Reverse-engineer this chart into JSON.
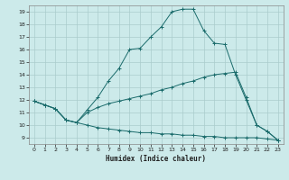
{
  "title": "",
  "xlabel": "Humidex (Indice chaleur)",
  "bg_color": "#cceaea",
  "grid_color": "#aacccc",
  "line_color": "#1a6b6b",
  "xlim": [
    -0.5,
    23.5
  ],
  "ylim": [
    8.5,
    19.5
  ],
  "xticks": [
    0,
    1,
    2,
    3,
    4,
    5,
    6,
    7,
    8,
    9,
    10,
    11,
    12,
    13,
    14,
    15,
    16,
    17,
    18,
    19,
    20,
    21,
    22,
    23
  ],
  "yticks": [
    9,
    10,
    11,
    12,
    13,
    14,
    15,
    16,
    17,
    18,
    19
  ],
  "c1x": [
    0,
    1,
    2,
    3,
    4,
    5,
    6,
    7,
    8,
    9,
    10,
    11,
    12,
    13,
    14,
    15,
    16,
    17,
    18,
    19,
    20,
    21,
    22,
    23
  ],
  "c1y": [
    11.9,
    11.6,
    11.3,
    10.4,
    10.2,
    11.2,
    12.2,
    13.5,
    14.5,
    16.0,
    16.1,
    17.0,
    17.8,
    19.0,
    19.2,
    19.2,
    17.5,
    16.5,
    16.4,
    14.0,
    12.0,
    10.0,
    9.5,
    8.8
  ],
  "c2x": [
    0,
    1,
    2,
    3,
    4,
    5,
    6,
    7,
    8,
    9,
    10,
    11,
    12,
    13,
    14,
    15,
    16,
    17,
    18,
    19,
    20,
    21,
    22,
    23
  ],
  "c2y": [
    11.9,
    11.6,
    11.3,
    10.4,
    10.2,
    11.0,
    11.4,
    11.7,
    11.9,
    12.1,
    12.3,
    12.5,
    12.8,
    13.0,
    13.3,
    13.5,
    13.8,
    14.0,
    14.1,
    14.2,
    12.2,
    10.0,
    9.5,
    8.8
  ],
  "c3x": [
    0,
    1,
    2,
    3,
    4,
    5,
    6,
    7,
    8,
    9,
    10,
    11,
    12,
    13,
    14,
    15,
    16,
    17,
    18,
    19,
    20,
    21,
    22,
    23
  ],
  "c3y": [
    11.9,
    11.6,
    11.3,
    10.4,
    10.2,
    10.0,
    9.8,
    9.7,
    9.6,
    9.5,
    9.4,
    9.4,
    9.3,
    9.3,
    9.2,
    9.2,
    9.1,
    9.1,
    9.0,
    9.0,
    9.0,
    9.0,
    8.9,
    8.8
  ]
}
